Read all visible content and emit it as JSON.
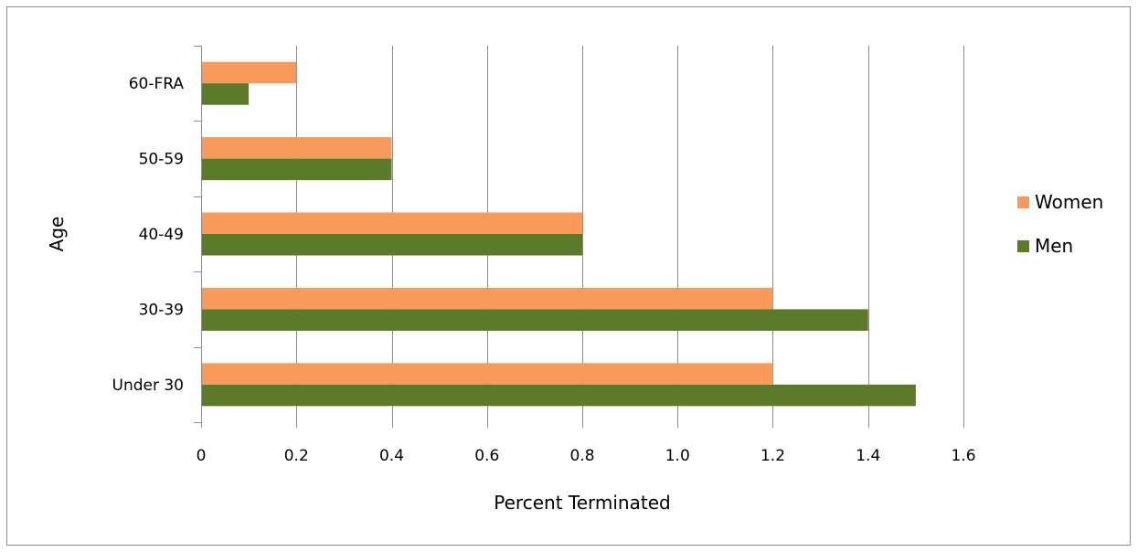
{
  "chart_data": {
    "type": "bar",
    "orientation": "horizontal",
    "title": "",
    "xlabel": "Percent Terminated",
    "ylabel": "Age",
    "categories": [
      "Under 30",
      "30-39",
      "40-49",
      "50-59",
      "60-FRA"
    ],
    "series": [
      {
        "name": "Women",
        "color": "#f79a5a",
        "values": [
          1.2,
          1.2,
          0.8,
          0.4,
          0.2
        ]
      },
      {
        "name": "Men",
        "color": "#5b7a2a",
        "values": [
          1.5,
          1.4,
          0.8,
          0.4,
          0.1
        ]
      }
    ],
    "xlim": [
      0,
      1.6
    ],
    "xticks": [
      0,
      0.2,
      0.4,
      0.6,
      0.8,
      1.0,
      1.2,
      1.4,
      1.6
    ],
    "xtick_labels": [
      "0",
      "0.2",
      "0.4",
      "0.6",
      "0.8",
      "1.0",
      "1.2",
      "1.4",
      "1.6"
    ],
    "grid": "vertical",
    "legend_position": "right"
  }
}
